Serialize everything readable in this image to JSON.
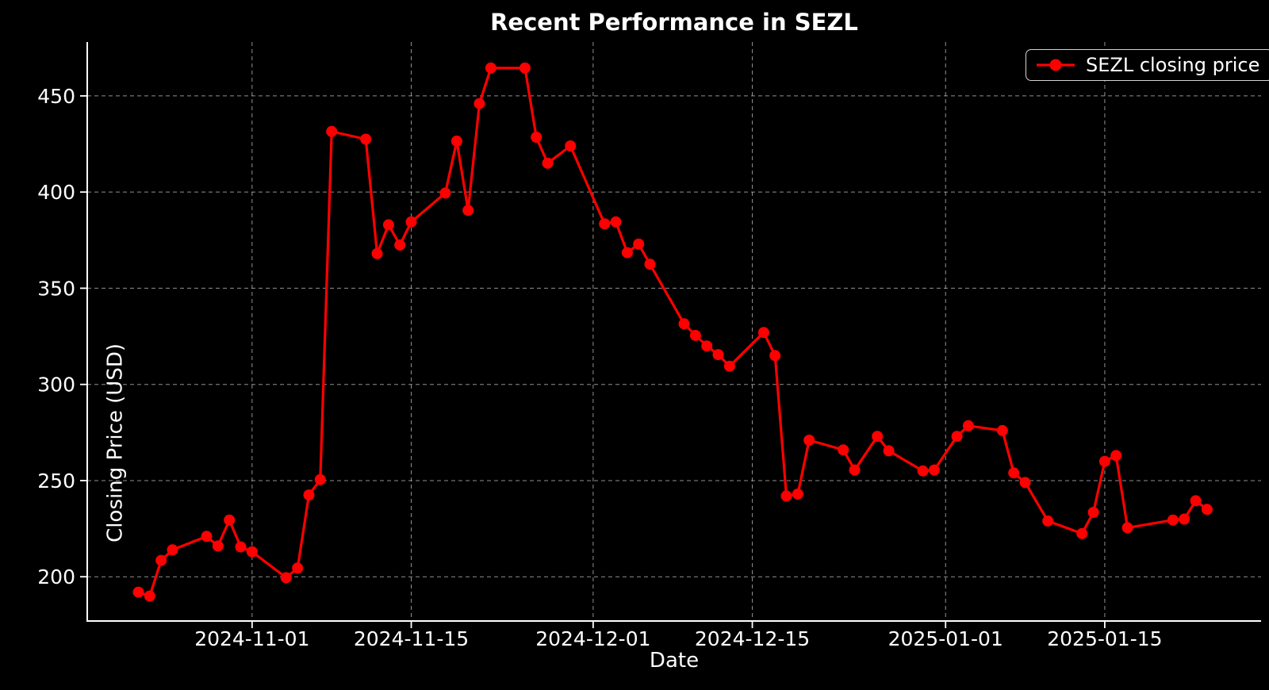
{
  "chart_data": {
    "type": "line",
    "title": "Recent Performance in SEZL",
    "xlabel": "Date",
    "ylabel": "Closing Price (USD)",
    "grid": true,
    "legend_position": "upper right",
    "colors": {
      "background": "#000000",
      "text": "#ffffff",
      "line": "#ff0000",
      "grid": "#cfcfcf",
      "spine": "#ffffff",
      "legend_border": "#d4d4d4",
      "legend_bg": "#000000"
    },
    "x_ticks": [
      "2024-11-01",
      "2024-11-15",
      "2024-12-01",
      "2024-12-15",
      "2025-01-01",
      "2025-01-15"
    ],
    "y_ticks": [
      200,
      250,
      300,
      350,
      400,
      450
    ],
    "xlim": [
      "2024-10-17T12:00:00Z",
      "2025-01-28T18:00:00Z"
    ],
    "ylim": [
      177,
      478
    ],
    "x": [
      "2024-10-22",
      "2024-10-23",
      "2024-10-24",
      "2024-10-25",
      "2024-10-28",
      "2024-10-29",
      "2024-10-30",
      "2024-10-31",
      "2024-11-01",
      "2024-11-04",
      "2024-11-05",
      "2024-11-06",
      "2024-11-07",
      "2024-11-08",
      "2024-11-11",
      "2024-11-12",
      "2024-11-13",
      "2024-11-14",
      "2024-11-15",
      "2024-11-18",
      "2024-11-19",
      "2024-11-20",
      "2024-11-21",
      "2024-11-22",
      "2024-11-25",
      "2024-11-26",
      "2024-11-27",
      "2024-11-29",
      "2024-12-02",
      "2024-12-03",
      "2024-12-04",
      "2024-12-05",
      "2024-12-06",
      "2024-12-09",
      "2024-12-10",
      "2024-12-11",
      "2024-12-12",
      "2024-12-13",
      "2024-12-16",
      "2024-12-17",
      "2024-12-18",
      "2024-12-19",
      "2024-12-20",
      "2024-12-23",
      "2024-12-24",
      "2024-12-26",
      "2024-12-27",
      "2024-12-30",
      "2024-12-31",
      "2025-01-02",
      "2025-01-03",
      "2025-01-06",
      "2025-01-07",
      "2025-01-08",
      "2025-01-10",
      "2025-01-13",
      "2025-01-14",
      "2025-01-15",
      "2025-01-16",
      "2025-01-17",
      "2025-01-21",
      "2025-01-22",
      "2025-01-23",
      "2025-01-24"
    ],
    "series": [
      {
        "name": "SEZL closing price",
        "color": "#ff0000",
        "marker": "circle",
        "values": [
          192,
          190,
          208.5,
          214,
          221,
          216,
          229.5,
          215.5,
          213,
          199.5,
          204.5,
          242.5,
          250.5,
          431.5,
          427.5,
          368,
          383,
          372.5,
          384.5,
          399.5,
          426.5,
          390.5,
          446,
          464.5,
          464.5,
          428.5,
          415,
          424,
          383.5,
          384.5,
          368.5,
          373,
          362.5,
          331.5,
          325.5,
          320,
          315.5,
          309.5,
          327,
          315,
          242,
          243,
          271,
          266,
          255.5,
          273,
          265.5,
          255,
          255.5,
          273,
          278.5,
          276,
          254,
          249,
          229,
          222.5,
          233.5,
          260,
          263,
          225.5,
          229.5,
          230,
          239.5,
          235
        ]
      }
    ]
  }
}
